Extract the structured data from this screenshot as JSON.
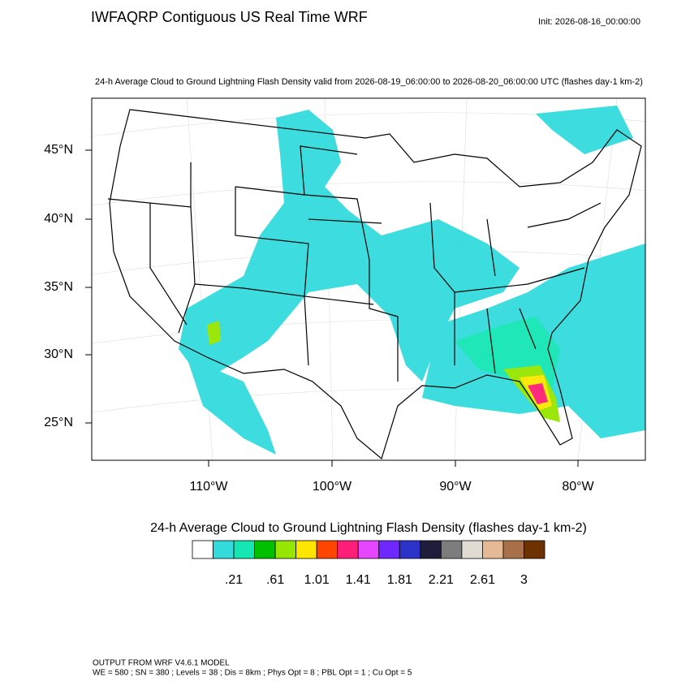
{
  "header": {
    "title": "IWFAQRP Contiguous US Real Time WRF",
    "init": "Init: 2026-08-16_00:00:00",
    "subtitle": "24-h Average Cloud to Ground Lightning Flash Density valid from 2026-08-19_06:00:00 to 2026-08-20_06:00:00 UTC   (flashes day-1 km-2)"
  },
  "map": {
    "lat_labels": [
      "45°N",
      "40°N",
      "35°N",
      "30°N",
      "25°N"
    ],
    "lon_labels": [
      "110°W",
      "100°W",
      "90°W",
      "80°W"
    ]
  },
  "colorbar": {
    "title": "24-h Average Cloud to Ground Lightning Flash Density  (flashes day-1 km-2)",
    "colors": [
      "#ffffff",
      "#33dbdd",
      "#14e6b4",
      "#00c000",
      "#96e600",
      "#ffe600",
      "#ff4600",
      "#ff1e78",
      "#e646ff",
      "#6e28ff",
      "#2d32c8",
      "#1e1e3c",
      "#7d7d7d",
      "#e1dcd2",
      "#e6b996",
      "#a87048",
      "#6e3200"
    ],
    "labels": [
      ".21",
      ".61",
      "1.01",
      "1.41",
      "1.81",
      "2.21",
      "2.61",
      "3"
    ]
  },
  "footer": {
    "line1": "OUTPUT FROM WRF V4.6.1 MODEL",
    "line2": "WE = 580 ; SN = 380 ; Levels = 38 ; Dis = 8km ; Phys Opt = 8 ; PBL Opt = 1 ; Cu Opt = 5"
  }
}
